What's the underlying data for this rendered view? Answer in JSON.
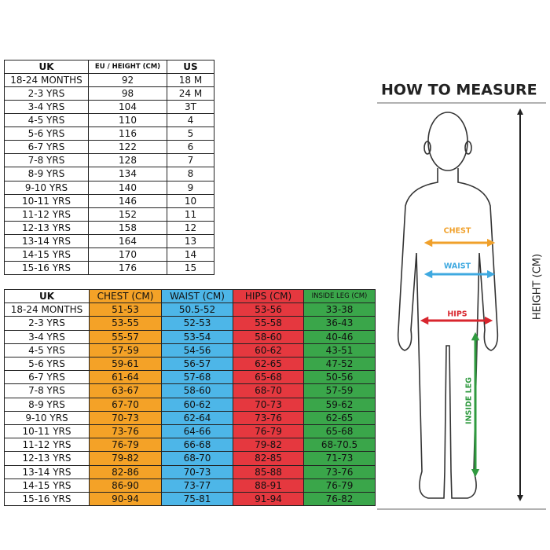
{
  "height_table": {
    "headers": [
      "UK",
      "EU / HEIGHT (CM)",
      "US"
    ],
    "rows": [
      [
        "18-24 MONTHS",
        "92",
        "18 M"
      ],
      [
        "2-3 YRS",
        "98",
        "24 M"
      ],
      [
        "3-4 YRS",
        "104",
        "3T"
      ],
      [
        "4-5 YRS",
        "110",
        "4"
      ],
      [
        "5-6 YRS",
        "116",
        "5"
      ],
      [
        "6-7 YRS",
        "122",
        "6"
      ],
      [
        "7-8 YRS",
        "128",
        "7"
      ],
      [
        "8-9 YRS",
        "134",
        "8"
      ],
      [
        "9-10 YRS",
        "140",
        "9"
      ],
      [
        "10-11 YRS",
        "146",
        "10"
      ],
      [
        "11-12 YRS",
        "152",
        "11"
      ],
      [
        "12-13 YRS",
        "158",
        "12"
      ],
      [
        "13-14 YRS",
        "164",
        "13"
      ],
      [
        "14-15 YRS",
        "170",
        "14"
      ],
      [
        "15-16 YRS",
        "176",
        "15"
      ]
    ]
  },
  "measure_table": {
    "headers": [
      "UK",
      "CHEST (CM)",
      "WAIST (CM)",
      "HIPS (CM)",
      "INSIDE LEG (CM)"
    ],
    "rows": [
      [
        "18-24 MONTHS",
        "51-53",
        "50.5-52",
        "53-56",
        "33-38"
      ],
      [
        "2-3 YRS",
        "53-55",
        "52-53",
        "55-58",
        "36-43"
      ],
      [
        "3-4 YRS",
        "55-57",
        "53-54",
        "58-60",
        "40-46"
      ],
      [
        "4-5 YRS",
        "57-59",
        "54-56",
        "60-62",
        "43-51"
      ],
      [
        "5-6 YRS",
        "59-61",
        "56-57",
        "62-65",
        "47-52"
      ],
      [
        "6-7 YRS",
        "61-64",
        "57-68",
        "65-68",
        "50-56"
      ],
      [
        "7-8 YRS",
        "63-67",
        "58-60",
        "68-70",
        "57-59"
      ],
      [
        "8-9 YRS",
        "67-70",
        "60-62",
        "70-73",
        "59-62"
      ],
      [
        "9-10 YRS",
        "70-73",
        "62-64",
        "73-76",
        "62-65"
      ],
      [
        "10-11 YRS",
        "73-76",
        "64-66",
        "76-79",
        "65-68"
      ],
      [
        "11-12 YRS",
        "76-79",
        "66-68",
        "79-82",
        "68-70.5"
      ],
      [
        "12-13 YRS",
        "79-82",
        "68-70",
        "82-85",
        "71-73"
      ],
      [
        "13-14 YRS",
        "82-86",
        "70-73",
        "85-88",
        "73-76"
      ],
      [
        "14-15 YRS",
        "86-90",
        "73-77",
        "88-91",
        "76-79"
      ],
      [
        "15-16 YRS",
        "90-94",
        "75-81",
        "91-94",
        "76-82"
      ]
    ]
  },
  "diagram": {
    "title": "HOW TO MEASURE",
    "chest": "CHEST",
    "waist": "WAIST",
    "hips": "HIPS",
    "inside_leg": "INSIDE LEG",
    "height": "HEIGHT (CM)"
  }
}
